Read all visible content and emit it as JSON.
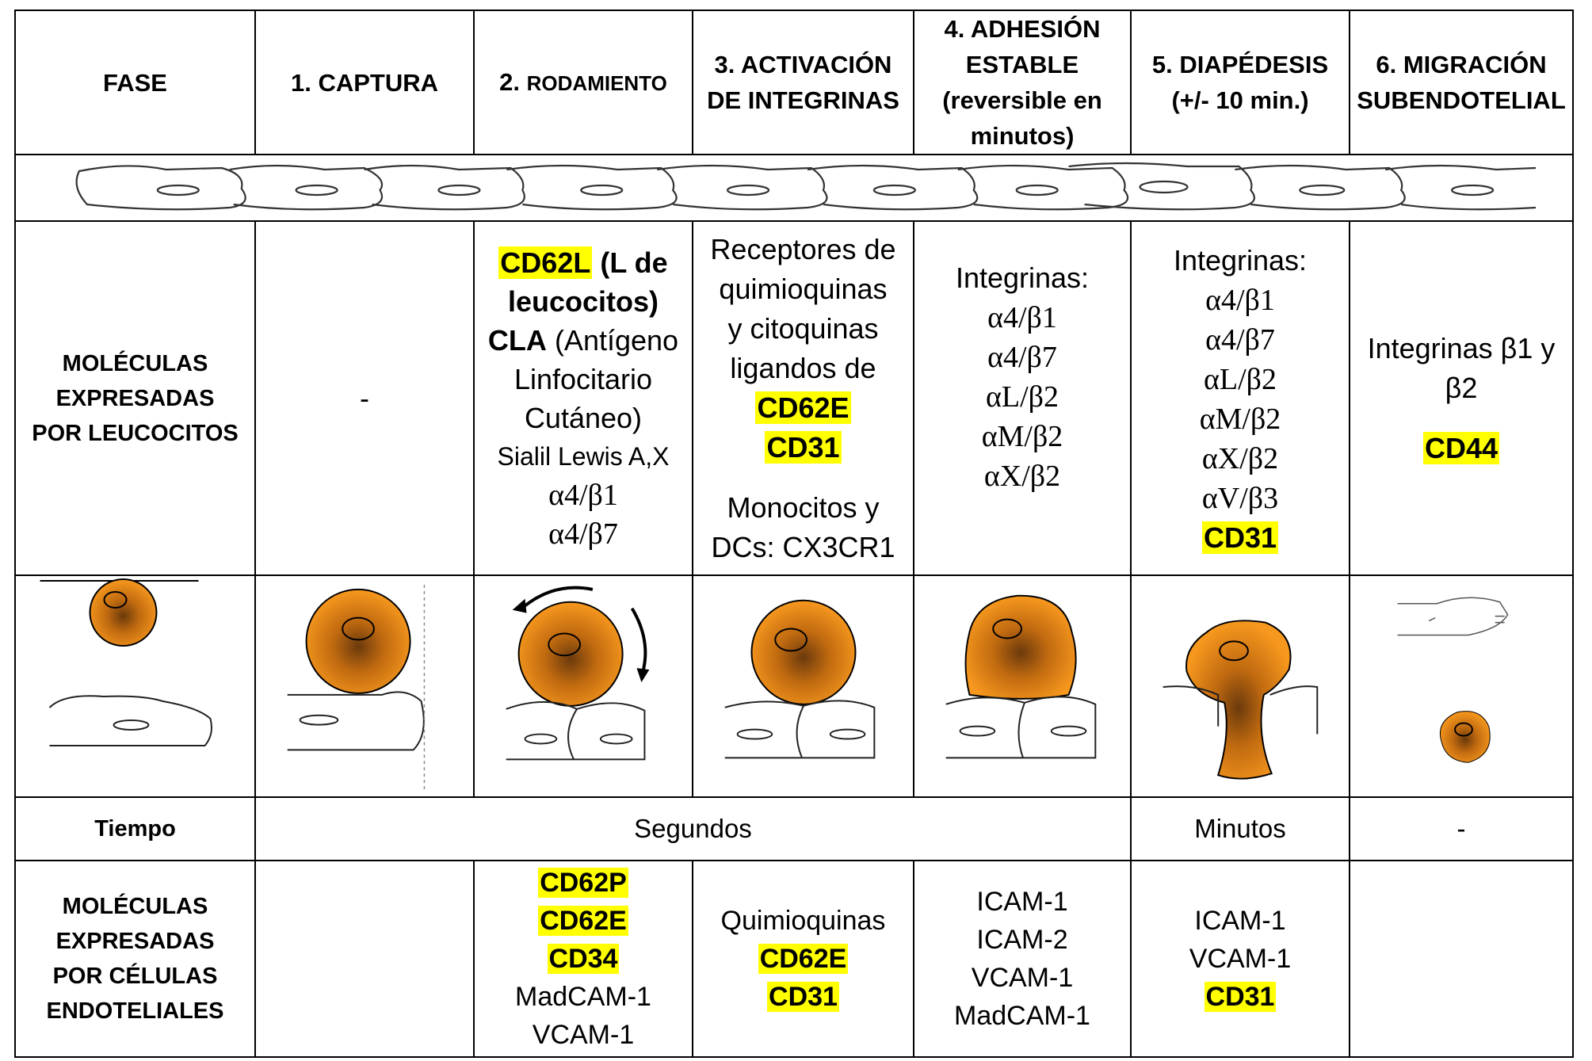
{
  "header": {
    "fase": "FASE",
    "stages": [
      {
        "num": "1.",
        "name": "CAPTURA"
      },
      {
        "num": "2.",
        "name": "RODAMIENTO"
      },
      {
        "num": "3.",
        "name": "ACTIVACIÓN DE INTEGRINAS"
      },
      {
        "num": "4.",
        "name": "ADHESIÓN ESTABLE",
        "note": "(reversible en minutos)"
      },
      {
        "num": "5.",
        "name": "DIAPÉDESIS",
        "note": "(+/- 10 min.)"
      },
      {
        "num": "6.",
        "name": "MIGRACIÓN SUBENDOTELIAL"
      }
    ]
  },
  "leukocyte_molecules": {
    "label_lines": [
      "MOLÉCULAS",
      "EXPRESADAS",
      "POR LEUCOCITOS"
    ],
    "captura": "-",
    "rodamiento": {
      "cd62l": "CD62L",
      "cd62l_note1": "(L de",
      "cd62l_note2": "leucocitos)",
      "cla": "CLA",
      "cla_note1": "(Antígeno",
      "cla_note2": "Linfocitario",
      "cla_note3": "Cutáneo)",
      "sialil": "Sialil Lewis A,X",
      "integrins": [
        "α4/β1",
        "α4/β7"
      ]
    },
    "activacion": {
      "lines": [
        "Receptores de",
        "quimioquinas",
        "y citoquinas",
        "ligandos de"
      ],
      "highlights": [
        "CD62E",
        "CD31"
      ],
      "mono_lines": [
        "Monocitos y",
        "DCs: CX3CR1"
      ]
    },
    "adhesion": {
      "title": "Integrinas:",
      "integrins": [
        "α4/β1",
        "α4/β7",
        "αL/β2",
        "αM/β2",
        "αX/β2"
      ]
    },
    "diapedesis": {
      "title": "Integrinas:",
      "integrins": [
        "α4/β1",
        "α4/β7",
        "αL/β2",
        "αM/β2",
        "αX/β2",
        "αV/β3"
      ],
      "highlight": "CD31"
    },
    "migracion": {
      "line1": "Integrinas β1 y",
      "line2": "β2",
      "highlight": "CD44"
    }
  },
  "tiempo": {
    "label": "Tiempo",
    "segundos": "Segundos",
    "minutos": "Minutos",
    "migracion": "-"
  },
  "endothelial_molecules": {
    "label_lines": [
      "MOLÉCULAS",
      "EXPRESADAS",
      "POR CÉLULAS",
      "ENDOTELIALES"
    ],
    "rodamiento": {
      "highlights": [
        "CD62P",
        "CD62E",
        "CD34"
      ],
      "lines": [
        "MadCAM-1",
        "VCAM-1"
      ]
    },
    "activacion": {
      "line": "Quimioquinas",
      "highlights": [
        "CD62E",
        "CD31"
      ]
    },
    "adhesion": {
      "lines": [
        "ICAM-1",
        "ICAM-2",
        "VCAM-1",
        "MadCAM-1"
      ]
    },
    "diapedesis": {
      "lines": [
        "ICAM-1",
        "VCAM-1"
      ],
      "highlight": "CD31"
    }
  },
  "colors": {
    "highlight": "#ffff00",
    "leukocyte_fill": "#f0901c",
    "leukocyte_dark": "#6b3a0c",
    "border": "#000000"
  }
}
